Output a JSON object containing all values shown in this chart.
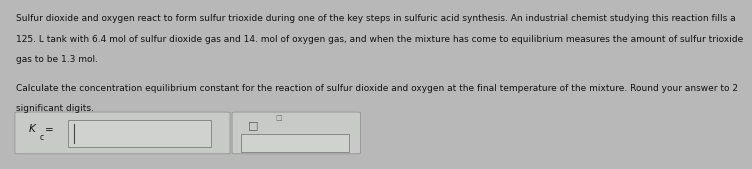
{
  "background_color": "#b8b8b8",
  "box_bg": "#c8cac8",
  "box_edge": "#999999",
  "inner_box_bg": "#d0d2d0",
  "inner_box_edge": "#888888",
  "text_color": "#111111",
  "paragraph1": "Sulfur dioxide and oxygen react to form sulfur trioxide during one of the key steps in sulfuric acid synthesis. An industrial chemist studying this reaction fills a",
  "paragraph2": "125. L tank with 6.4 mol of sulfur dioxide gas and 14. mol of oxygen gas, and when the mixture has come to equilibrium measures the amount of sulfur trioxide",
  "paragraph3": "gas to be 1.3 mol.",
  "paragraph4": "Calculate the concentration equilibrium constant for the reaction of sulfur dioxide and oxygen at the final temperature of the mixture. Round your answer to 2",
  "paragraph5": "significant digits.",
  "font_size_body": 6.5,
  "font_size_label": 7.5,
  "font_size_subscript": 5.5
}
